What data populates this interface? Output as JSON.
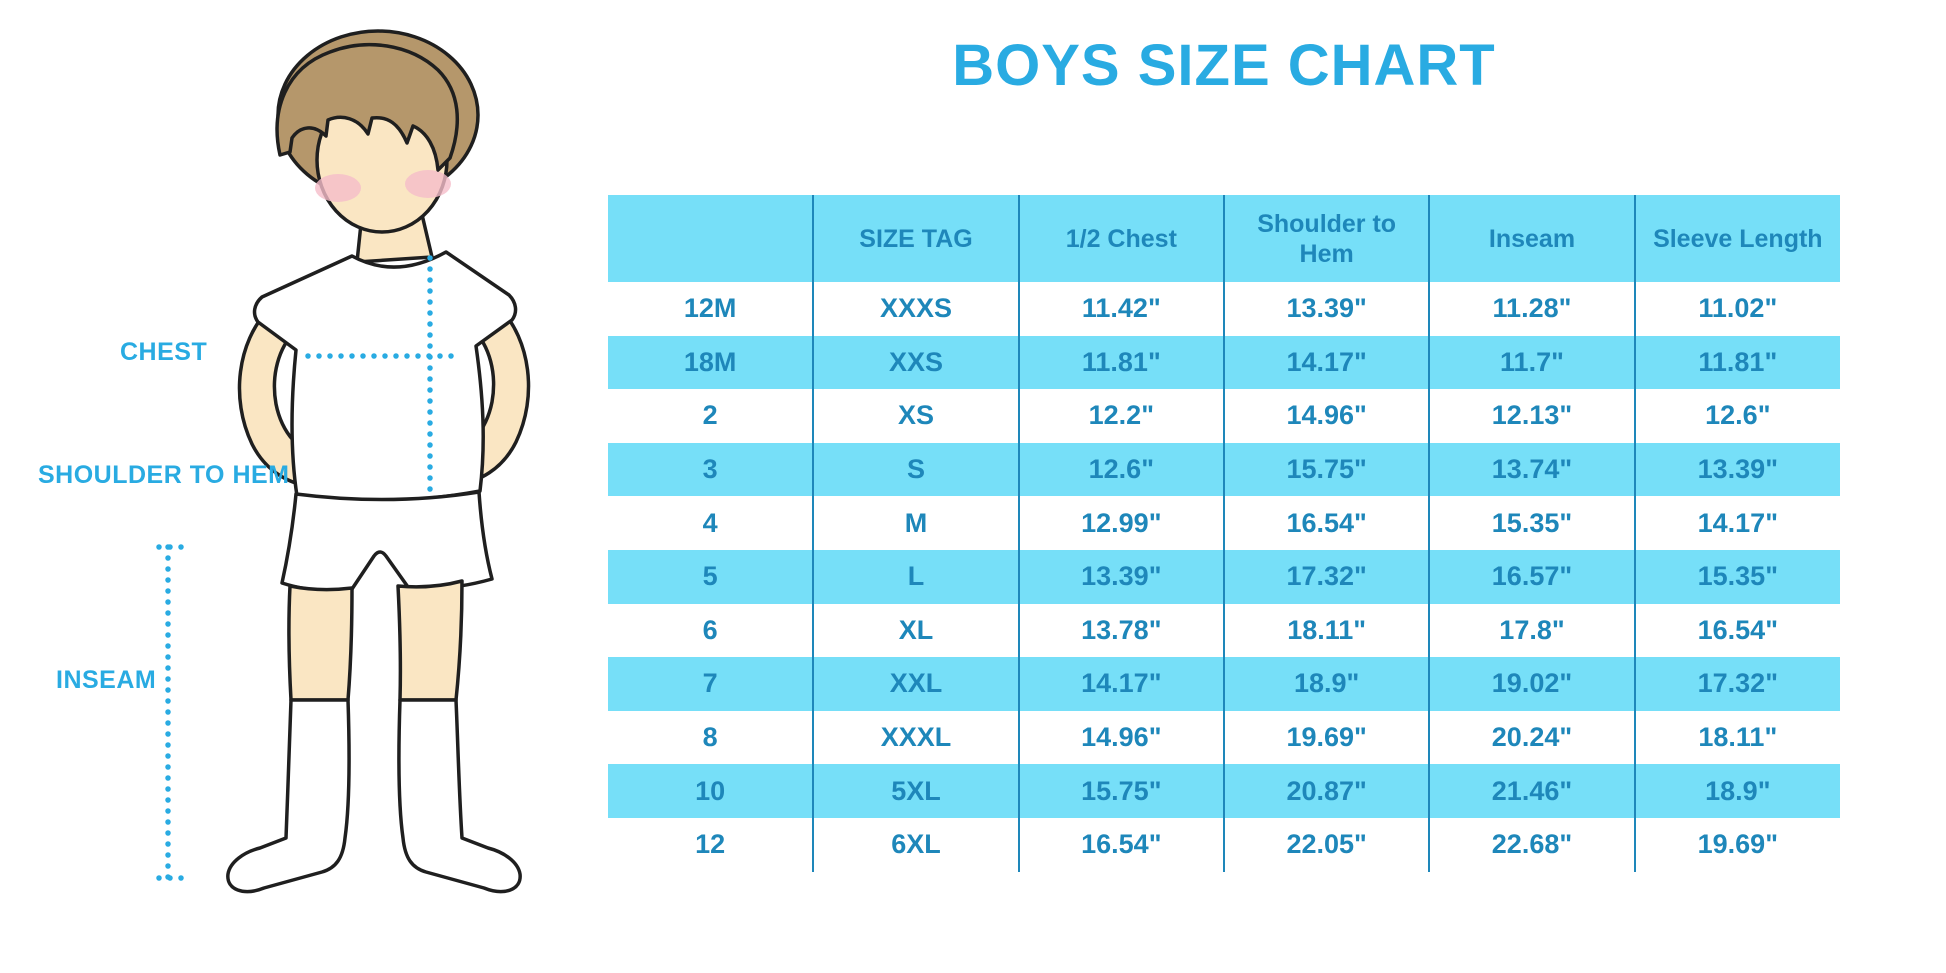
{
  "title": "BOYS SIZE CHART",
  "figure": {
    "chest_label": "CHEST",
    "shoulder_to_hem_label": "SHOULDER TO HEM",
    "inseam_label": "INSEAM"
  },
  "colors": {
    "accent_blue": "#29ABE2",
    "table_text_blue": "#1E87BA",
    "light_cyan_row": "#76DFF8",
    "skin": "#FAE6C3",
    "hair_brown": "#B5976B",
    "blush_pink": "#F5BDC9",
    "outline": "#1F1F1F"
  },
  "chart_data": {
    "type": "table",
    "title": "BOYS SIZE CHART",
    "columns": [
      "",
      "SIZE TAG",
      "1/2 Chest",
      "Shoulder to Hem",
      "Inseam",
      "Sleeve Length"
    ],
    "rows": [
      [
        "12M",
        "XXXS",
        "11.42\"",
        "13.39\"",
        "11.28\"",
        "11.02\""
      ],
      [
        "18M",
        "XXS",
        "11.81\"",
        "14.17\"",
        "11.7\"",
        "11.81\""
      ],
      [
        "2",
        "XS",
        "12.2\"",
        "14.96\"",
        "12.13\"",
        "12.6\""
      ],
      [
        "3",
        "S",
        "12.6\"",
        "15.75\"",
        "13.74\"",
        "13.39\""
      ],
      [
        "4",
        "M",
        "12.99\"",
        "16.54\"",
        "15.35\"",
        "14.17\""
      ],
      [
        "5",
        "L",
        "13.39\"",
        "17.32\"",
        "16.57\"",
        "15.35\""
      ],
      [
        "6",
        "XL",
        "13.78\"",
        "18.11\"",
        "17.8\"",
        "16.54\""
      ],
      [
        "7",
        "XXL",
        "14.17\"",
        "18.9\"",
        "19.02\"",
        "17.32\""
      ],
      [
        "8",
        "XXXL",
        "14.96\"",
        "19.69\"",
        "20.24\"",
        "18.11\""
      ],
      [
        "10",
        "5XL",
        "15.75\"",
        "20.87\"",
        "21.46\"",
        "18.9\""
      ],
      [
        "12",
        "6XL",
        "16.54\"",
        "22.05\"",
        "22.68\"",
        "19.69\""
      ]
    ],
    "row_striping": "alternating white / light cyan starting with white",
    "legend_position": "none",
    "grid": "vertical column dividers only"
  }
}
